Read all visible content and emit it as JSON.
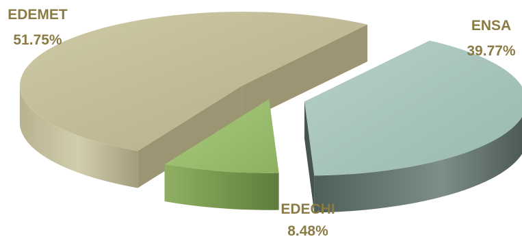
{
  "chart_data": {
    "type": "pie",
    "style": "3d-exploded",
    "title": "",
    "slices": [
      {
        "label": "EDEMET",
        "value": 51.75,
        "value_text": "51.75%",
        "color": "#c3bf9a",
        "side_color": "#9e9878",
        "label_color": "#8a7b45"
      },
      {
        "label": "ENSA",
        "value": 39.77,
        "value_text": "39.77%",
        "color": "#a6c4bc",
        "side_color": "#4e5e58",
        "label_color": "#8a7b45"
      },
      {
        "label": "EDECHI",
        "value": 8.48,
        "value_text": "8.48%",
        "color": "#9ec06e",
        "side_color": "#6b8b44",
        "label_color": "#8a7b45"
      }
    ]
  }
}
